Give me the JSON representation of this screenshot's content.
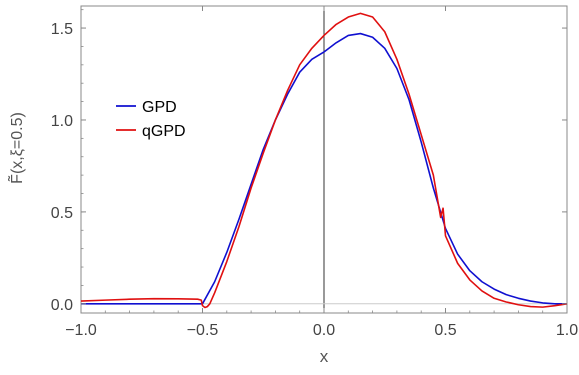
{
  "chart_data": {
    "type": "line",
    "title": "",
    "xlabel": "x",
    "ylabel": "F̃(x,ξ=0.5)",
    "xlim": [
      -1.0,
      1.0
    ],
    "ylim": [
      -0.05,
      1.62
    ],
    "x_ticks": [
      -1.0,
      -0.5,
      0.0,
      0.5,
      1.0
    ],
    "x_tick_labels": [
      "−1.0",
      "−0.5",
      "0.0",
      "0.5",
      "1.0"
    ],
    "y_ticks": [
      0.0,
      0.5,
      1.0,
      1.5
    ],
    "y_tick_labels": [
      "0.0",
      "0.5",
      "1.0",
      "1.5"
    ],
    "grid": false,
    "legend_position": "upper-left",
    "colors": {
      "GPD": "#1010d0",
      "qGPD": "#e01010",
      "axis": "#000000",
      "frame": "#888888",
      "tick_text": "#444444"
    },
    "series": [
      {
        "name": "GPD",
        "x": [
          -1.0,
          -0.9,
          -0.8,
          -0.7,
          -0.6,
          -0.52,
          -0.5,
          -0.45,
          -0.4,
          -0.35,
          -0.3,
          -0.25,
          -0.2,
          -0.15,
          -0.1,
          -0.05,
          0.0,
          0.05,
          0.1,
          0.15,
          0.2,
          0.25,
          0.3,
          0.35,
          0.4,
          0.45,
          0.5,
          0.55,
          0.6,
          0.65,
          0.7,
          0.75,
          0.8,
          0.85,
          0.9,
          0.95,
          1.0
        ],
        "y": [
          0.0,
          0.0,
          0.0,
          0.0,
          0.0,
          0.0,
          0.0,
          0.12,
          0.28,
          0.46,
          0.65,
          0.84,
          1.0,
          1.14,
          1.26,
          1.33,
          1.37,
          1.42,
          1.46,
          1.47,
          1.45,
          1.39,
          1.28,
          1.11,
          0.88,
          0.63,
          0.41,
          0.27,
          0.18,
          0.12,
          0.08,
          0.05,
          0.03,
          0.015,
          0.005,
          0.0,
          0.0
        ]
      },
      {
        "name": "qGPD",
        "x": [
          -1.0,
          -0.9,
          -0.8,
          -0.7,
          -0.6,
          -0.52,
          -0.505,
          -0.5,
          -0.49,
          -0.48,
          -0.47,
          -0.45,
          -0.4,
          -0.35,
          -0.3,
          -0.25,
          -0.2,
          -0.15,
          -0.1,
          -0.05,
          0.0,
          0.05,
          0.1,
          0.15,
          0.2,
          0.25,
          0.3,
          0.35,
          0.4,
          0.45,
          0.48,
          0.49,
          0.5,
          0.55,
          0.6,
          0.65,
          0.7,
          0.75,
          0.8,
          0.85,
          0.9,
          0.95,
          1.0
        ],
        "y": [
          0.015,
          0.02,
          0.025,
          0.028,
          0.027,
          0.025,
          0.02,
          -0.01,
          -0.02,
          -0.015,
          0.0,
          0.06,
          0.23,
          0.42,
          0.63,
          0.82,
          1.0,
          1.16,
          1.3,
          1.39,
          1.46,
          1.52,
          1.56,
          1.58,
          1.56,
          1.48,
          1.33,
          1.14,
          0.92,
          0.7,
          0.47,
          0.52,
          0.37,
          0.22,
          0.13,
          0.07,
          0.03,
          0.01,
          -0.005,
          -0.015,
          -0.018,
          -0.01,
          0.0
        ]
      }
    ]
  }
}
